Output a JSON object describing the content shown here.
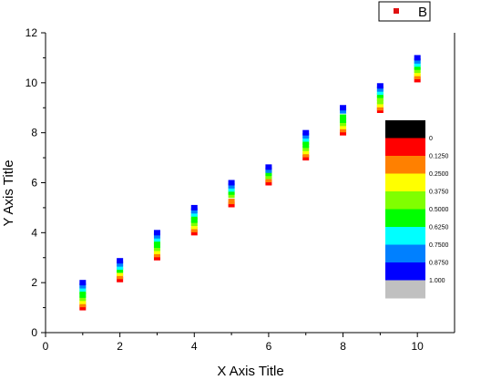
{
  "chart_data": {
    "type": "scatter",
    "xlabel": "X Axis Title",
    "ylabel": "Y Axis Title",
    "xlim": [
      0,
      11
    ],
    "ylim": [
      0,
      12
    ],
    "x_ticks": [
      0,
      2,
      4,
      6,
      8,
      10
    ],
    "y_ticks": [
      0,
      2,
      4,
      6,
      8,
      10,
      12
    ],
    "grid": false,
    "legend": {
      "placement": "top-right",
      "entries": [
        {
          "label": "B",
          "color": "#e01010"
        }
      ]
    },
    "marker": "square",
    "series": [
      {
        "name": "B",
        "points": [
          {
            "x": 1,
            "y": 1.0
          },
          {
            "x": 1,
            "y": 1.125
          },
          {
            "x": 1,
            "y": 1.25
          },
          {
            "x": 1,
            "y": 1.375
          },
          {
            "x": 1,
            "y": 1.5
          },
          {
            "x": 1,
            "y": 1.625
          },
          {
            "x": 1,
            "y": 1.75
          },
          {
            "x": 1,
            "y": 1.875
          },
          {
            "x": 1,
            "y": 2.0
          },
          {
            "x": 2,
            "y": 2.125
          },
          {
            "x": 2,
            "y": 2.25
          },
          {
            "x": 2,
            "y": 2.375
          },
          {
            "x": 2,
            "y": 2.5
          },
          {
            "x": 2,
            "y": 2.625
          },
          {
            "x": 2,
            "y": 2.75
          },
          {
            "x": 2,
            "y": 2.875
          },
          {
            "x": 3,
            "y": 3.0
          },
          {
            "x": 3,
            "y": 3.125
          },
          {
            "x": 3,
            "y": 3.25
          },
          {
            "x": 3,
            "y": 3.375
          },
          {
            "x": 3,
            "y": 3.5
          },
          {
            "x": 3,
            "y": 3.625
          },
          {
            "x": 3,
            "y": 3.75
          },
          {
            "x": 3,
            "y": 3.875
          },
          {
            "x": 3,
            "y": 4.0
          },
          {
            "x": 4,
            "y": 4.0
          },
          {
            "x": 4,
            "y": 4.125
          },
          {
            "x": 4,
            "y": 4.25
          },
          {
            "x": 4,
            "y": 4.375
          },
          {
            "x": 4,
            "y": 4.5
          },
          {
            "x": 4,
            "y": 4.625
          },
          {
            "x": 4,
            "y": 4.75
          },
          {
            "x": 4,
            "y": 4.875
          },
          {
            "x": 4,
            "y": 5.0
          },
          {
            "x": 5,
            "y": 5.125
          },
          {
            "x": 5,
            "y": 5.25
          },
          {
            "x": 5,
            "y": 5.5
          },
          {
            "x": 5,
            "y": 5.625
          },
          {
            "x": 5,
            "y": 5.75
          },
          {
            "x": 5,
            "y": 5.875
          },
          {
            "x": 5,
            "y": 6.0
          },
          {
            "x": 6,
            "y": 6.0
          },
          {
            "x": 6,
            "y": 6.125
          },
          {
            "x": 6,
            "y": 6.25
          },
          {
            "x": 6,
            "y": 6.375
          },
          {
            "x": 6,
            "y": 6.5
          },
          {
            "x": 6,
            "y": 6.625
          },
          {
            "x": 7,
            "y": 7.0
          },
          {
            "x": 7,
            "y": 7.125
          },
          {
            "x": 7,
            "y": 7.25
          },
          {
            "x": 7,
            "y": 7.375
          },
          {
            "x": 7,
            "y": 7.5
          },
          {
            "x": 7,
            "y": 7.625
          },
          {
            "x": 7,
            "y": 7.75
          },
          {
            "x": 7,
            "y": 7.875
          },
          {
            "x": 7,
            "y": 8.0
          },
          {
            "x": 8,
            "y": 8.0
          },
          {
            "x": 8,
            "y": 8.125
          },
          {
            "x": 8,
            "y": 8.25
          },
          {
            "x": 8,
            "y": 8.375
          },
          {
            "x": 8,
            "y": 8.5
          },
          {
            "x": 8,
            "y": 8.625
          },
          {
            "x": 8,
            "y": 8.875
          },
          {
            "x": 8,
            "y": 9.0
          },
          {
            "x": 9,
            "y": 8.9
          },
          {
            "x": 9,
            "y": 9.0
          },
          {
            "x": 9,
            "y": 9.125
          },
          {
            "x": 9,
            "y": 9.25
          },
          {
            "x": 9,
            "y": 9.375
          },
          {
            "x": 9,
            "y": 9.5
          },
          {
            "x": 9,
            "y": 9.625
          },
          {
            "x": 9,
            "y": 9.75
          },
          {
            "x": 9,
            "y": 9.875
          },
          {
            "x": 10,
            "y": 10.125
          },
          {
            "x": 10,
            "y": 10.25
          },
          {
            "x": 10,
            "y": 10.375
          },
          {
            "x": 10,
            "y": 10.5
          },
          {
            "x": 10,
            "y": 10.625
          },
          {
            "x": 10,
            "y": 10.75
          },
          {
            "x": 10,
            "y": 10.875
          },
          {
            "x": 10,
            "y": 11.0
          }
        ]
      }
    ],
    "color_scale": {
      "labels": [
        "0",
        "0.1250",
        "0.2500",
        "0.3750",
        "0.5000",
        "0.6250",
        "0.7500",
        "0.8750",
        "1.000"
      ],
      "colors": [
        "#000000",
        "#ff0000",
        "#ff8000",
        "#ffff00",
        "#80ff00",
        "#00ff00",
        "#00ffff",
        "#0080ff",
        "#0000ff",
        "#c0c0c0"
      ]
    }
  }
}
